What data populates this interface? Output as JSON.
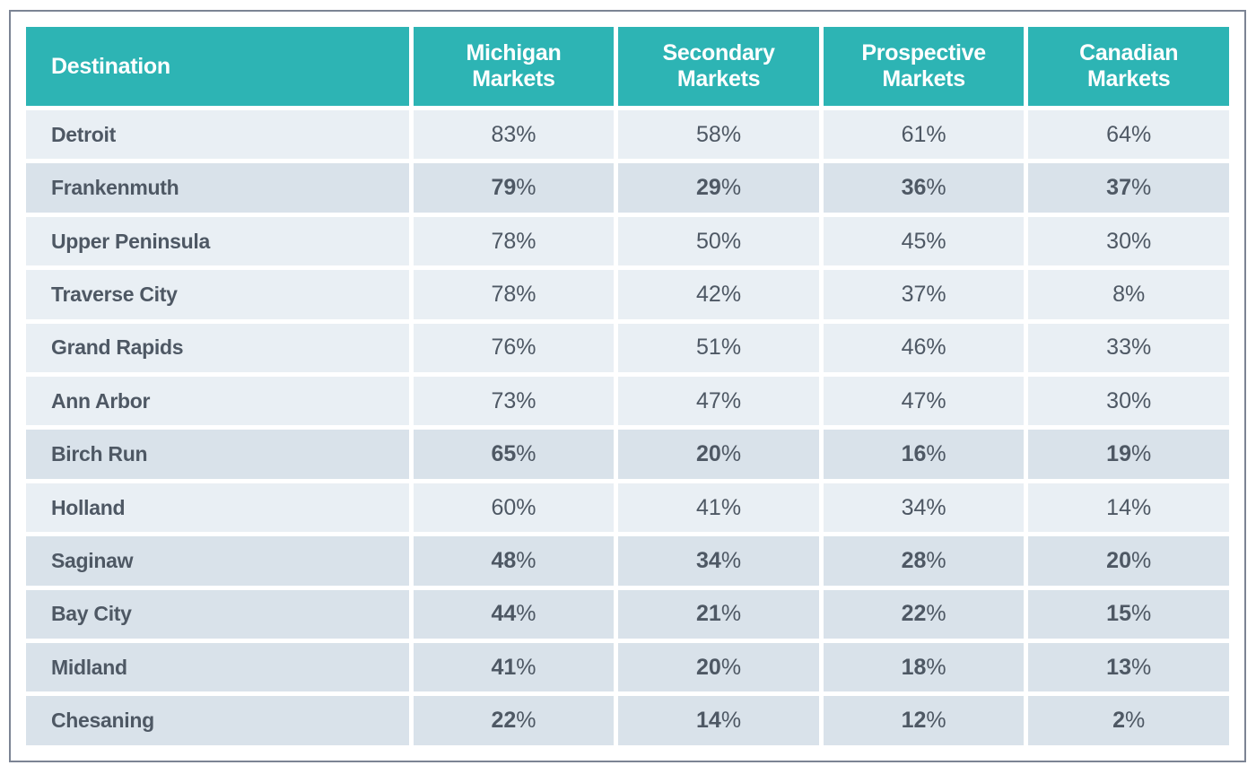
{
  "colors": {
    "header_bg": "#2db4b4",
    "header_text": "#ffffff",
    "row_light_bg": "#e9eff4",
    "row_highlight_bg": "#d9e2ea",
    "cell_text": "#4e5864",
    "frame_border": "#7c8494",
    "gutter": "#ffffff"
  },
  "table": {
    "columns": [
      {
        "label": "Destination"
      },
      {
        "label": "Michigan Markets"
      },
      {
        "label": "Secondary Markets"
      },
      {
        "label": "Prospective Markets"
      },
      {
        "label": "Canadian Markets"
      }
    ],
    "rows": [
      {
        "destination": "Detroit",
        "values": [
          "83%",
          "58%",
          "61%",
          "64%"
        ],
        "highlighted": false
      },
      {
        "destination": "Frankenmuth",
        "values": [
          "79%",
          "29%",
          "36%",
          "37%"
        ],
        "highlighted": true
      },
      {
        "destination": "Upper Peninsula",
        "values": [
          "78%",
          "50%",
          "45%",
          "30%"
        ],
        "highlighted": false
      },
      {
        "destination": "Traverse City",
        "values": [
          "78%",
          "42%",
          "37%",
          "8%"
        ],
        "highlighted": false
      },
      {
        "destination": "Grand Rapids",
        "values": [
          "76%",
          "51%",
          "46%",
          "33%"
        ],
        "highlighted": false
      },
      {
        "destination": "Ann Arbor",
        "values": [
          "73%",
          "47%",
          "47%",
          "30%"
        ],
        "highlighted": false
      },
      {
        "destination": "Birch Run",
        "values": [
          "65%",
          "20%",
          "16%",
          "19%"
        ],
        "highlighted": true
      },
      {
        "destination": "Holland",
        "values": [
          "60%",
          "41%",
          "34%",
          "14%"
        ],
        "highlighted": false
      },
      {
        "destination": "Saginaw",
        "values": [
          "48%",
          "34%",
          "28%",
          "20%"
        ],
        "highlighted": true
      },
      {
        "destination": "Bay City",
        "values": [
          "44%",
          "21%",
          "22%",
          "15%"
        ],
        "highlighted": true
      },
      {
        "destination": "Midland",
        "values": [
          "41%",
          "20%",
          "18%",
          "13%"
        ],
        "highlighted": true
      },
      {
        "destination": "Chesaning",
        "values": [
          "22%",
          "14%",
          "12%",
          "2%"
        ],
        "highlighted": true
      }
    ]
  },
  "chart_data": {
    "type": "table",
    "title": "",
    "columns": [
      "Destination",
      "Michigan Markets",
      "Secondary Markets",
      "Prospective Markets",
      "Canadian Markets"
    ],
    "unit": "%",
    "rows": [
      [
        "Detroit",
        83,
        58,
        61,
        64
      ],
      [
        "Frankenmuth",
        79,
        29,
        36,
        37
      ],
      [
        "Upper Peninsula",
        78,
        50,
        45,
        30
      ],
      [
        "Traverse City",
        78,
        42,
        37,
        8
      ],
      [
        "Grand Rapids",
        76,
        51,
        46,
        33
      ],
      [
        "Ann Arbor",
        73,
        47,
        47,
        30
      ],
      [
        "Birch Run",
        65,
        20,
        16,
        19
      ],
      [
        "Holland",
        60,
        41,
        34,
        14
      ],
      [
        "Saginaw",
        48,
        34,
        28,
        20
      ],
      [
        "Bay City",
        44,
        21,
        22,
        15
      ],
      [
        "Midland",
        41,
        20,
        18,
        13
      ],
      [
        "Chesaning",
        22,
        14,
        12,
        2
      ]
    ],
    "highlighted_rows": [
      "Frankenmuth",
      "Birch Run",
      "Saginaw",
      "Bay City",
      "Midland",
      "Chesaning"
    ]
  }
}
